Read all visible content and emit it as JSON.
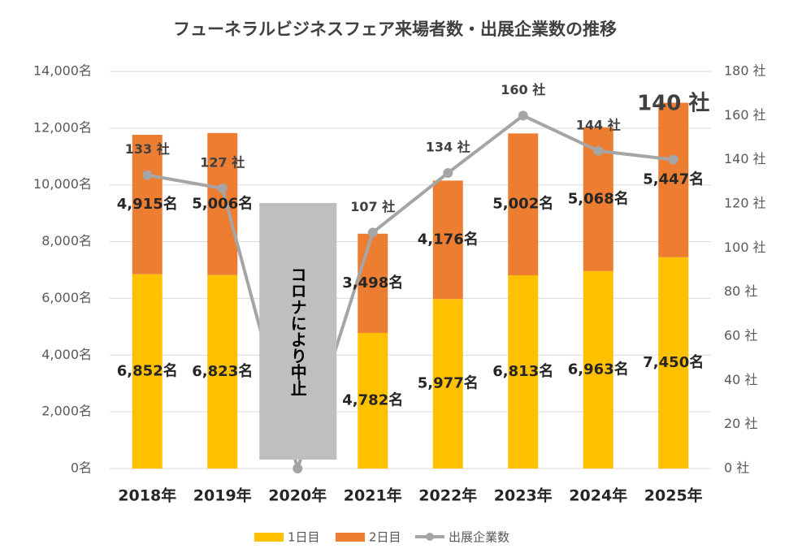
{
  "chart_data": {
    "type": "bar-line",
    "title": "フューネラルビジネスフェア来場者数・出展企業数の推移",
    "categories": [
      "2018年",
      "2019年",
      "2020年",
      "2021年",
      "2022年",
      "2023年",
      "2024年",
      "2025年"
    ],
    "series": [
      {
        "name": "1日目",
        "color": "#FFC000",
        "type": "bar",
        "stacked": true,
        "values": [
          6852,
          6823,
          null,
          4782,
          5977,
          6813,
          6963,
          7450
        ],
        "value_labels": [
          "6,852名",
          "6,823名",
          null,
          "4,782名",
          "5,977名",
          "6,813名",
          "6,963名",
          "7,450名"
        ]
      },
      {
        "name": "2日目",
        "color": "#ED7D31",
        "type": "bar",
        "stacked": true,
        "values": [
          4915,
          5006,
          null,
          3498,
          4176,
          5002,
          5068,
          5447
        ],
        "value_labels": [
          "4,915名",
          "5,006名",
          null,
          "3,498名",
          "4,176名",
          "5,002名",
          "5,068名",
          "5,447名"
        ]
      },
      {
        "name": "出展企業数",
        "color": "#A5A5A5",
        "type": "line",
        "axis": "y2",
        "values": [
          133,
          127,
          0,
          107,
          134,
          160,
          144,
          140
        ],
        "value_labels": [
          "133 社",
          "127 社",
          null,
          "107 社",
          "134 社",
          "160 社",
          "144 社",
          "140 社"
        ]
      }
    ],
    "annotations": [
      "コロナにより中止"
    ],
    "ylim": [
      0,
      14000
    ],
    "yticks": [
      {
        "value": 0,
        "label": "0名"
      },
      {
        "value": 2000,
        "label": "2,000名"
      },
      {
        "value": 4000,
        "label": "4,000名"
      },
      {
        "value": 6000,
        "label": "6,000名"
      },
      {
        "value": 8000,
        "label": "8,000名"
      },
      {
        "value": 10000,
        "label": "10,000名"
      },
      {
        "value": 12000,
        "label": "12,000名"
      },
      {
        "value": 14000,
        "label": "14,000名"
      }
    ],
    "y2lim": [
      0,
      180
    ],
    "y2ticks": [
      {
        "value": 0,
        "label": "0 社"
      },
      {
        "value": 20,
        "label": "20 社"
      },
      {
        "value": 40,
        "label": "40 社"
      },
      {
        "value": 60,
        "label": "60 社"
      },
      {
        "value": 80,
        "label": "80 社"
      },
      {
        "value": 100,
        "label": "100 社"
      },
      {
        "value": 120,
        "label": "120 社"
      },
      {
        "value": 140,
        "label": "140 社"
      },
      {
        "value": 160,
        "label": "160 社"
      },
      {
        "value": 180,
        "label": "180 社"
      }
    ],
    "grid": true,
    "legend": "bottom"
  }
}
